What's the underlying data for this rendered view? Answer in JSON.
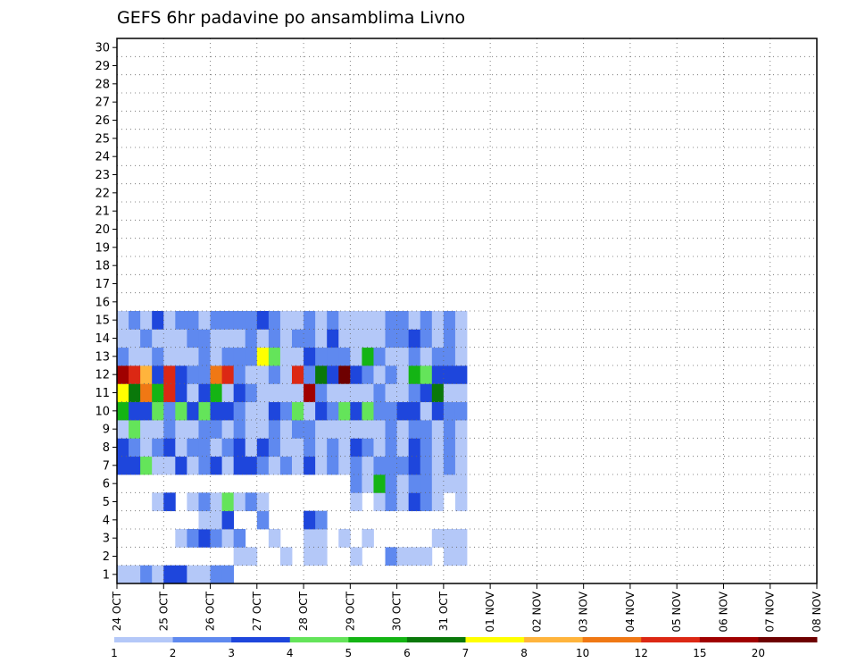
{
  "chart_data": {
    "type": "heatmap",
    "title": "GEFS 6hr padavine po ansamblima Livno",
    "ylabel_values": [
      "1",
      "2",
      "3",
      "4",
      "5",
      "6",
      "7",
      "8",
      "9",
      "10",
      "11",
      "12",
      "13",
      "14",
      "15",
      "16",
      "17",
      "18",
      "19",
      "20",
      "21",
      "22",
      "23",
      "24",
      "25",
      "26",
      "27",
      "28",
      "29",
      "30"
    ],
    "xtick_labels": [
      "24 OCT",
      "25 OCT",
      "26 OCT",
      "27 OCT",
      "28 OCT",
      "29 OCT",
      "30 OCT",
      "31 OCT",
      "01 NOV",
      "02 NOV",
      "03 NOV",
      "04 NOV",
      "05 NOV",
      "06 NOV",
      "07 NOV",
      "08 NOV"
    ],
    "time_steps_per_day": 4,
    "x_range_steps": [
      0,
      60
    ],
    "y_range": [
      0.5,
      30.5
    ],
    "grid": true,
    "legend": {
      "placement": "bottom",
      "labels": [
        "1",
        "2",
        "3",
        "4",
        "5",
        "6",
        "7",
        "8",
        "10",
        "12",
        "15",
        "20"
      ],
      "colors": [
        "#b4c8f8",
        "#5f89ef",
        "#1e46dc",
        "#64e45a",
        "#14b414",
        "#0a780a",
        "#ffff00",
        "#ffb43c",
        "#f07814",
        "#dc2814",
        "#a00000",
        "#6e0000"
      ]
    },
    "cells": [
      [
        0,
        0,
        1
      ],
      [
        1,
        0,
        1
      ],
      [
        2,
        0,
        2
      ],
      [
        3,
        0,
        1
      ],
      [
        4,
        0,
        3
      ],
      [
        5,
        0,
        3
      ],
      [
        6,
        0,
        1
      ],
      [
        7,
        0,
        1
      ],
      [
        8,
        0,
        2
      ],
      [
        9,
        0,
        2
      ],
      [
        10,
        1,
        1
      ],
      [
        11,
        1,
        1
      ],
      [
        14,
        1,
        1
      ],
      [
        16,
        1,
        1
      ],
      [
        17,
        1,
        1
      ],
      [
        20,
        1,
        1
      ],
      [
        23,
        1,
        2
      ],
      [
        24,
        1,
        1
      ],
      [
        25,
        1,
        1
      ],
      [
        26,
        1,
        1
      ],
      [
        28,
        1,
        1
      ],
      [
        29,
        1,
        1
      ],
      [
        5,
        2,
        1
      ],
      [
        6,
        2,
        2
      ],
      [
        7,
        2,
        3
      ],
      [
        8,
        2,
        2
      ],
      [
        9,
        2,
        1
      ],
      [
        10,
        2,
        2
      ],
      [
        13,
        2,
        1
      ],
      [
        16,
        2,
        1
      ],
      [
        17,
        2,
        1
      ],
      [
        19,
        2,
        1
      ],
      [
        21,
        2,
        1
      ],
      [
        27,
        2,
        1
      ],
      [
        28,
        2,
        1
      ],
      [
        29,
        2,
        1
      ],
      [
        7,
        3,
        1
      ],
      [
        8,
        3,
        1
      ],
      [
        9,
        3,
        3
      ],
      [
        12,
        3,
        2
      ],
      [
        16,
        3,
        3
      ],
      [
        17,
        3,
        2
      ],
      [
        3,
        4,
        1
      ],
      [
        4,
        4,
        3
      ],
      [
        6,
        4,
        1
      ],
      [
        7,
        4,
        2
      ],
      [
        8,
        4,
        1
      ],
      [
        9,
        4,
        4
      ],
      [
        10,
        4,
        1
      ],
      [
        11,
        4,
        2
      ],
      [
        12,
        4,
        1
      ],
      [
        20,
        4,
        1
      ],
      [
        22,
        4,
        1
      ],
      [
        23,
        4,
        2
      ],
      [
        24,
        4,
        1
      ],
      [
        25,
        4,
        3
      ],
      [
        26,
        4,
        2
      ],
      [
        27,
        4,
        1
      ],
      [
        29,
        4,
        1
      ],
      [
        20,
        5,
        2
      ],
      [
        21,
        5,
        1
      ],
      [
        22,
        5,
        5
      ],
      [
        23,
        5,
        2
      ],
      [
        24,
        5,
        1
      ],
      [
        25,
        5,
        2
      ],
      [
        26,
        5,
        2
      ],
      [
        27,
        5,
        1
      ],
      [
        28,
        5,
        1
      ],
      [
        29,
        5,
        1
      ],
      [
        0,
        6,
        3
      ],
      [
        1,
        6,
        3
      ],
      [
        2,
        6,
        4
      ],
      [
        3,
        6,
        1
      ],
      [
        4,
        6,
        1
      ],
      [
        5,
        6,
        3
      ],
      [
        6,
        6,
        1
      ],
      [
        7,
        6,
        2
      ],
      [
        8,
        6,
        3
      ],
      [
        9,
        6,
        1
      ],
      [
        10,
        6,
        3
      ],
      [
        11,
        6,
        3
      ],
      [
        12,
        6,
        2
      ],
      [
        13,
        6,
        1
      ],
      [
        14,
        6,
        2
      ],
      [
        15,
        6,
        1
      ],
      [
        16,
        6,
        3
      ],
      [
        17,
        6,
        1
      ],
      [
        18,
        6,
        2
      ],
      [
        19,
        6,
        1
      ],
      [
        20,
        6,
        2
      ],
      [
        21,
        6,
        1
      ],
      [
        22,
        6,
        2
      ],
      [
        23,
        6,
        2
      ],
      [
        24,
        6,
        2
      ],
      [
        25,
        6,
        3
      ],
      [
        26,
        6,
        2
      ],
      [
        27,
        6,
        1
      ],
      [
        28,
        6,
        2
      ],
      [
        29,
        6,
        1
      ],
      [
        0,
        7,
        3
      ],
      [
        1,
        7,
        2
      ],
      [
        2,
        7,
        1
      ],
      [
        3,
        7,
        2
      ],
      [
        4,
        7,
        3
      ],
      [
        5,
        7,
        1
      ],
      [
        6,
        7,
        2
      ],
      [
        7,
        7,
        2
      ],
      [
        8,
        7,
        1
      ],
      [
        9,
        7,
        2
      ],
      [
        10,
        7,
        3
      ],
      [
        11,
        7,
        1
      ],
      [
        12,
        7,
        3
      ],
      [
        13,
        7,
        2
      ],
      [
        14,
        7,
        1
      ],
      [
        15,
        7,
        1
      ],
      [
        16,
        7,
        2
      ],
      [
        17,
        7,
        1
      ],
      [
        18,
        7,
        2
      ],
      [
        19,
        7,
        1
      ],
      [
        20,
        7,
        3
      ],
      [
        21,
        7,
        2
      ],
      [
        22,
        7,
        1
      ],
      [
        23,
        7,
        2
      ],
      [
        24,
        7,
        1
      ],
      [
        25,
        7,
        3
      ],
      [
        26,
        7,
        2
      ],
      [
        27,
        7,
        1
      ],
      [
        28,
        7,
        2
      ],
      [
        29,
        7,
        1
      ],
      [
        0,
        8,
        1
      ],
      [
        1,
        8,
        4
      ],
      [
        2,
        8,
        1
      ],
      [
        3,
        8,
        1
      ],
      [
        4,
        8,
        2
      ],
      [
        5,
        8,
        1
      ],
      [
        6,
        8,
        1
      ],
      [
        7,
        8,
        2
      ],
      [
        8,
        8,
        2
      ],
      [
        9,
        8,
        1
      ],
      [
        10,
        8,
        2
      ],
      [
        11,
        8,
        1
      ],
      [
        12,
        8,
        1
      ],
      [
        13,
        8,
        2
      ],
      [
        14,
        8,
        1
      ],
      [
        15,
        8,
        2
      ],
      [
        16,
        8,
        2
      ],
      [
        17,
        8,
        1
      ],
      [
        18,
        8,
        1
      ],
      [
        19,
        8,
        1
      ],
      [
        20,
        8,
        1
      ],
      [
        21,
        8,
        1
      ],
      [
        22,
        8,
        1
      ],
      [
        23,
        8,
        2
      ],
      [
        24,
        8,
        1
      ],
      [
        25,
        8,
        2
      ],
      [
        26,
        8,
        2
      ],
      [
        27,
        8,
        1
      ],
      [
        28,
        8,
        2
      ],
      [
        29,
        8,
        1
      ],
      [
        0,
        9,
        5
      ],
      [
        1,
        9,
        3
      ],
      [
        2,
        9,
        3
      ],
      [
        3,
        9,
        4
      ],
      [
        4,
        9,
        2
      ],
      [
        5,
        9,
        4
      ],
      [
        6,
        9,
        3
      ],
      [
        7,
        9,
        4
      ],
      [
        8,
        9,
        3
      ],
      [
        9,
        9,
        3
      ],
      [
        10,
        9,
        2
      ],
      [
        11,
        9,
        1
      ],
      [
        12,
        9,
        1
      ],
      [
        13,
        9,
        3
      ],
      [
        14,
        9,
        2
      ],
      [
        15,
        9,
        4
      ],
      [
        16,
        9,
        1
      ],
      [
        17,
        9,
        3
      ],
      [
        18,
        9,
        2
      ],
      [
        19,
        9,
        4
      ],
      [
        20,
        9,
        3
      ],
      [
        21,
        9,
        4
      ],
      [
        22,
        9,
        2
      ],
      [
        23,
        9,
        2
      ],
      [
        24,
        9,
        3
      ],
      [
        25,
        9,
        3
      ],
      [
        26,
        9,
        1
      ],
      [
        27,
        9,
        3
      ],
      [
        28,
        9,
        2
      ],
      [
        29,
        9,
        2
      ],
      [
        0,
        10,
        7
      ],
      [
        1,
        10,
        6
      ],
      [
        2,
        10,
        9
      ],
      [
        3,
        10,
        5
      ],
      [
        4,
        10,
        10
      ],
      [
        5,
        10,
        3
      ],
      [
        6,
        10,
        1
      ],
      [
        7,
        10,
        3
      ],
      [
        8,
        10,
        5
      ],
      [
        9,
        10,
        1
      ],
      [
        10,
        10,
        3
      ],
      [
        11,
        10,
        2
      ],
      [
        12,
        10,
        1
      ],
      [
        13,
        10,
        1
      ],
      [
        14,
        10,
        1
      ],
      [
        15,
        10,
        1
      ],
      [
        16,
        10,
        11
      ],
      [
        17,
        10,
        2
      ],
      [
        18,
        10,
        1
      ],
      [
        19,
        10,
        1
      ],
      [
        20,
        10,
        1
      ],
      [
        21,
        10,
        1
      ],
      [
        22,
        10,
        2
      ],
      [
        23,
        10,
        1
      ],
      [
        24,
        10,
        1
      ],
      [
        25,
        10,
        2
      ],
      [
        26,
        10,
        3
      ],
      [
        27,
        10,
        6
      ],
      [
        28,
        10,
        1
      ],
      [
        29,
        10,
        1
      ],
      [
        0,
        11,
        11
      ],
      [
        1,
        11,
        10
      ],
      [
        2,
        11,
        8
      ],
      [
        3,
        11,
        3
      ],
      [
        4,
        11,
        10
      ],
      [
        5,
        11,
        3
      ],
      [
        6,
        11,
        2
      ],
      [
        7,
        11,
        2
      ],
      [
        8,
        11,
        9
      ],
      [
        9,
        11,
        10
      ],
      [
        10,
        11,
        2
      ],
      [
        11,
        11,
        1
      ],
      [
        12,
        11,
        1
      ],
      [
        13,
        11,
        2
      ],
      [
        14,
        11,
        1
      ],
      [
        15,
        11,
        10
      ],
      [
        16,
        11,
        2
      ],
      [
        17,
        11,
        6
      ],
      [
        18,
        11,
        3
      ],
      [
        19,
        11,
        12
      ],
      [
        20,
        11,
        3
      ],
      [
        21,
        11,
        2
      ],
      [
        22,
        11,
        1
      ],
      [
        23,
        11,
        2
      ],
      [
        24,
        11,
        1
      ],
      [
        25,
        11,
        5
      ],
      [
        26,
        11,
        4
      ],
      [
        27,
        11,
        3
      ],
      [
        28,
        11,
        3
      ],
      [
        29,
        11,
        3
      ],
      [
        0,
        12,
        2
      ],
      [
        1,
        12,
        1
      ],
      [
        2,
        12,
        1
      ],
      [
        3,
        12,
        2
      ],
      [
        4,
        12,
        1
      ],
      [
        5,
        12,
        1
      ],
      [
        6,
        12,
        1
      ],
      [
        7,
        12,
        2
      ],
      [
        8,
        12,
        1
      ],
      [
        9,
        12,
        2
      ],
      [
        10,
        12,
        2
      ],
      [
        11,
        12,
        2
      ],
      [
        12,
        12,
        7
      ],
      [
        13,
        12,
        4
      ],
      [
        14,
        12,
        1
      ],
      [
        15,
        12,
        1
      ],
      [
        16,
        12,
        3
      ],
      [
        17,
        12,
        2
      ],
      [
        18,
        12,
        2
      ],
      [
        19,
        12,
        2
      ],
      [
        20,
        12,
        1
      ],
      [
        21,
        12,
        5
      ],
      [
        22,
        12,
        2
      ],
      [
        23,
        12,
        1
      ],
      [
        24,
        12,
        1
      ],
      [
        25,
        12,
        2
      ],
      [
        26,
        12,
        1
      ],
      [
        27,
        12,
        2
      ],
      [
        28,
        12,
        2
      ],
      [
        29,
        12,
        1
      ],
      [
        0,
        13,
        1
      ],
      [
        1,
        13,
        1
      ],
      [
        2,
        13,
        2
      ],
      [
        3,
        13,
        1
      ],
      [
        4,
        13,
        1
      ],
      [
        5,
        13,
        1
      ],
      [
        6,
        13,
        2
      ],
      [
        7,
        13,
        2
      ],
      [
        8,
        13,
        1
      ],
      [
        9,
        13,
        1
      ],
      [
        10,
        13,
        1
      ],
      [
        11,
        13,
        2
      ],
      [
        12,
        13,
        1
      ],
      [
        13,
        13,
        2
      ],
      [
        14,
        13,
        1
      ],
      [
        15,
        13,
        2
      ],
      [
        16,
        13,
        2
      ],
      [
        17,
        13,
        1
      ],
      [
        18,
        13,
        3
      ],
      [
        19,
        13,
        1
      ],
      [
        20,
        13,
        1
      ],
      [
        21,
        13,
        1
      ],
      [
        22,
        13,
        1
      ],
      [
        23,
        13,
        2
      ],
      [
        24,
        13,
        2
      ],
      [
        25,
        13,
        3
      ],
      [
        26,
        13,
        2
      ],
      [
        27,
        13,
        1
      ],
      [
        28,
        13,
        2
      ],
      [
        29,
        13,
        1
      ],
      [
        0,
        14,
        1
      ],
      [
        1,
        14,
        2
      ],
      [
        2,
        14,
        1
      ],
      [
        3,
        14,
        3
      ],
      [
        4,
        14,
        1
      ],
      [
        5,
        14,
        2
      ],
      [
        6,
        14,
        2
      ],
      [
        7,
        14,
        1
      ],
      [
        8,
        14,
        2
      ],
      [
        9,
        14,
        2
      ],
      [
        10,
        14,
        2
      ],
      [
        11,
        14,
        2
      ],
      [
        12,
        14,
        3
      ],
      [
        13,
        14,
        2
      ],
      [
        14,
        14,
        1
      ],
      [
        15,
        14,
        1
      ],
      [
        16,
        14,
        2
      ],
      [
        17,
        14,
        1
      ],
      [
        18,
        14,
        2
      ],
      [
        19,
        14,
        1
      ],
      [
        20,
        14,
        1
      ],
      [
        21,
        14,
        1
      ],
      [
        22,
        14,
        1
      ],
      [
        23,
        14,
        2
      ],
      [
        24,
        14,
        2
      ],
      [
        25,
        14,
        1
      ],
      [
        26,
        14,
        2
      ],
      [
        27,
        14,
        1
      ],
      [
        28,
        14,
        2
      ],
      [
        29,
        14,
        1
      ]
    ]
  }
}
